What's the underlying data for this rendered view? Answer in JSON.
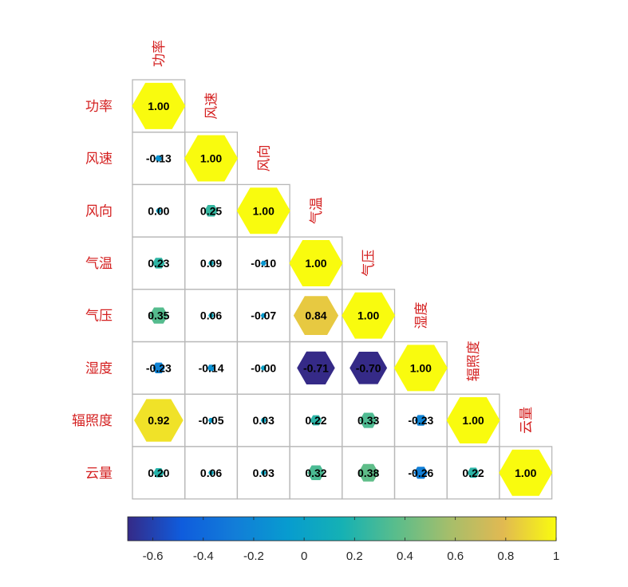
{
  "chart_data": {
    "type": "heatmap",
    "variables": [
      "功率",
      "风速",
      "风向",
      "气温",
      "气压",
      "湿度",
      "辐照度",
      "云量"
    ],
    "matrix": [
      [
        1.0
      ],
      [
        -0.13,
        1.0
      ],
      [
        0.0,
        0.25,
        1.0
      ],
      [
        0.23,
        0.09,
        -0.1,
        1.0
      ],
      [
        0.35,
        0.06,
        -0.07,
        0.84,
        1.0
      ],
      [
        -0.23,
        -0.14,
        -0.0,
        -0.71,
        -0.7,
        1.0
      ],
      [
        0.92,
        -0.05,
        0.03,
        0.22,
        0.33,
        -0.23,
        1.0
      ],
      [
        0.2,
        0.06,
        0.03,
        0.32,
        0.38,
        -0.26,
        0.22,
        1.0
      ]
    ],
    "value_labels": [
      [
        "1.00"
      ],
      [
        "-0.13",
        "1.00"
      ],
      [
        "0.00",
        "0.25",
        "1.00"
      ],
      [
        "0.23",
        "0.09",
        "-0.10",
        "1.00"
      ],
      [
        "0.35",
        "0.06",
        "-0.07",
        "0.84",
        "1.00"
      ],
      [
        "-0.23",
        "-0.14",
        "-0.00",
        "-0.71",
        "-0.70",
        "1.00"
      ],
      [
        "0.92",
        "-0.05",
        "0.03",
        "0.22",
        "0.33",
        "-0.23",
        "1.00"
      ],
      [
        "0.20",
        "0.06",
        "0.03",
        "0.32",
        "0.38",
        "-0.26",
        "0.22",
        "1.00"
      ]
    ],
    "marker": "hexagon",
    "colorbar": {
      "colormap": "parula",
      "range": [
        -0.7,
        1.0
      ],
      "ticks": [
        "-0.6",
        "-0.4",
        "-0.2",
        "0",
        "0.2",
        "0.4",
        "0.6",
        "0.8",
        "1"
      ],
      "tick_values": [
        -0.6,
        -0.4,
        -0.2,
        0,
        0.2,
        0.4,
        0.6,
        0.8,
        1.0
      ],
      "orientation": "horizontal",
      "placement": "bottom"
    },
    "colors": {
      "label": "#d42020",
      "grid": "#b8b8b8"
    }
  }
}
